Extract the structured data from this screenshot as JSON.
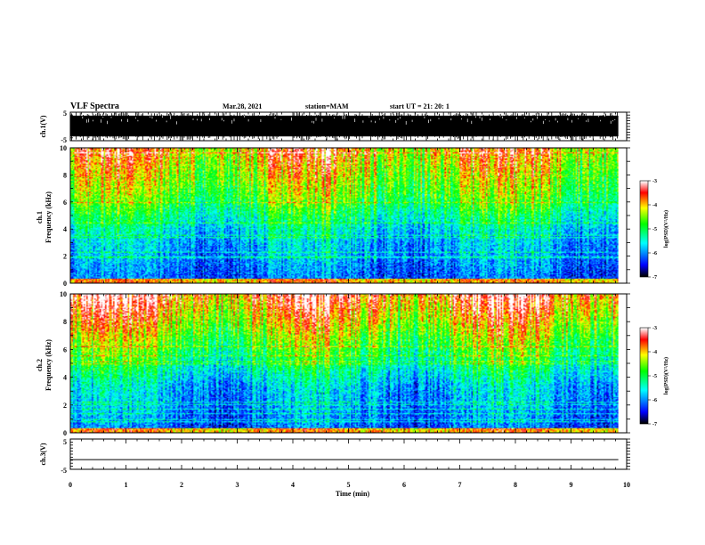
{
  "header": {
    "title": "VLF Spectra",
    "date": "Mar.28, 2021",
    "station": "station=MAM",
    "start": "start  UT =   21: 20: 1"
  },
  "chart_data": [
    {
      "type": "line",
      "name": "ch1-waveform",
      "ylabel": "ch.1(V)",
      "ylim": [
        -5,
        5
      ],
      "yticks": [
        "5",
        "-5"
      ],
      "xlim": [
        0,
        10
      ]
    },
    {
      "type": "heatmap",
      "name": "ch1-spectrogram",
      "ylabel_line1": "ch.1",
      "ylabel_line2": "Frequency (kHz)",
      "ylim": [
        0,
        10
      ],
      "yticks": [
        "0",
        "2",
        "4",
        "6",
        "8",
        "10"
      ],
      "xlim": [
        0,
        10
      ],
      "data_end_x": 9.85,
      "colorbar": {
        "label": "log(PSD)(V²/Hz)",
        "range": [
          -7,
          -3
        ],
        "ticks": [
          "-3",
          "-4",
          "-5",
          "-6",
          "-7"
        ],
        "colors": [
          "#000000",
          "#0000ff",
          "#00ffff",
          "#00ff00",
          "#ffff00",
          "#ff0000",
          "#ffffff"
        ]
      }
    },
    {
      "type": "heatmap",
      "name": "ch2-spectrogram",
      "ylabel_line1": "ch.2",
      "ylabel_line2": "Frequency (kHz)",
      "ylim": [
        0,
        10
      ],
      "yticks": [
        "0",
        "2",
        "4",
        "6",
        "8",
        "10"
      ],
      "xlim": [
        0,
        10
      ],
      "data_end_x": 9.85,
      "colorbar": {
        "label": "log(PSD)(V²/Hz)",
        "range": [
          -7,
          -3
        ],
        "ticks": [
          "-3",
          "-4",
          "-5",
          "-6",
          "-7"
        ],
        "colors": [
          "#000000",
          "#0000ff",
          "#00ffff",
          "#00ff00",
          "#ffff00",
          "#ff0000",
          "#ffffff"
        ]
      }
    },
    {
      "type": "line",
      "name": "ch3-waveform",
      "ylabel": "ch.3(V)",
      "ylim": [
        -5,
        5
      ],
      "yticks": [
        "5",
        "-5"
      ],
      "xlim": [
        0,
        10
      ],
      "flat_value": -1.8
    }
  ],
  "xaxis": {
    "label": "Time (min)",
    "ticks": [
      "0",
      "1",
      "2",
      "3",
      "4",
      "5",
      "6",
      "7",
      "8",
      "9",
      "10"
    ],
    "range": [
      0,
      10
    ]
  }
}
